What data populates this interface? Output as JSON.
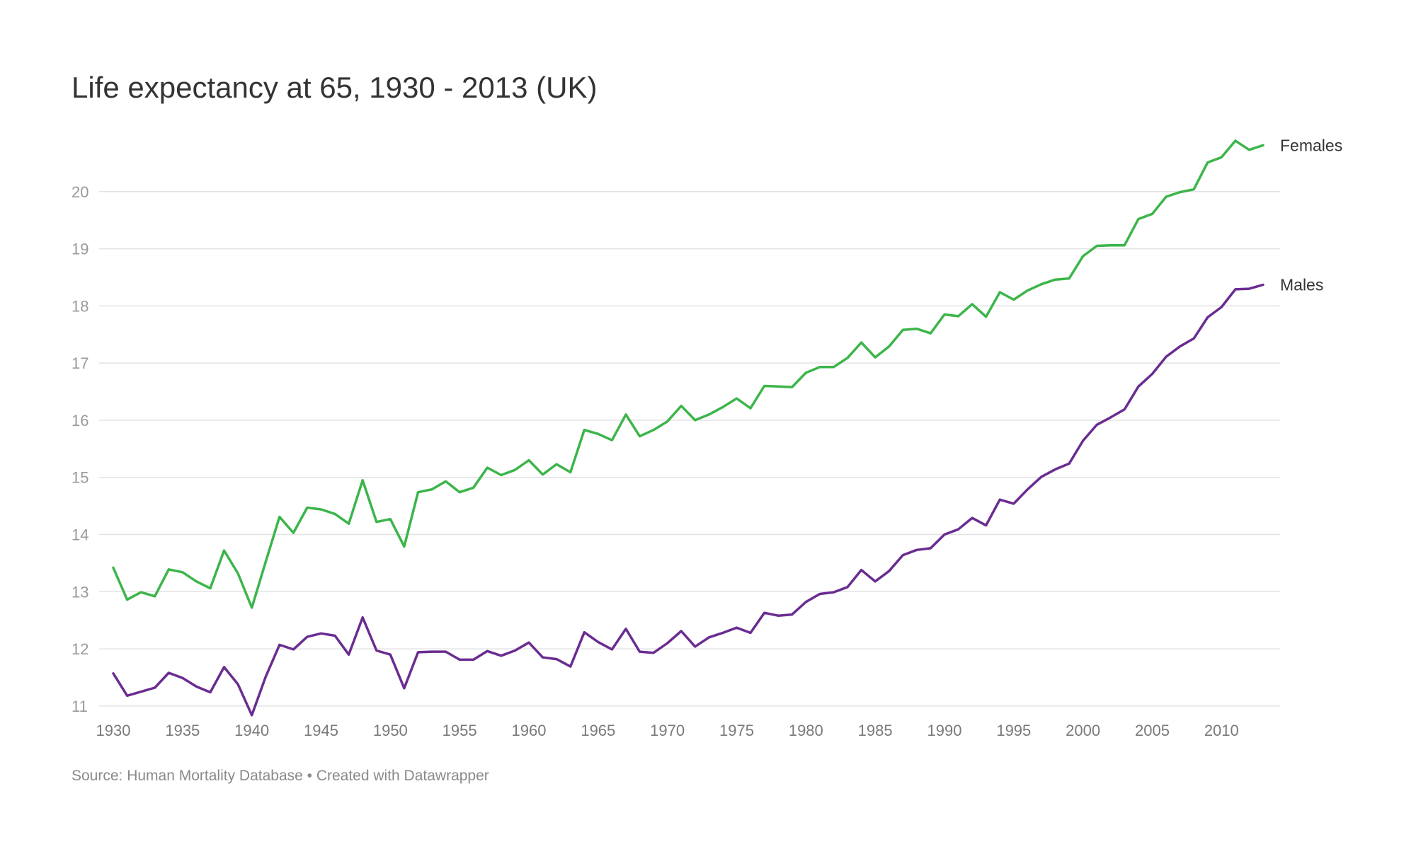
{
  "title": "Life expectancy at 65, 1930 - 2013 (UK)",
  "source": "Source: Human Mortality Database • Created with Datawrapper",
  "chart_data": {
    "type": "line",
    "title": "Life expectancy at 65, 1930 - 2013 (UK)",
    "xlabel": "",
    "ylabel": "",
    "xlim": [
      1930,
      2013
    ],
    "ylim": [
      10.85,
      21.0
    ],
    "yticks": [
      11,
      12,
      13,
      14,
      15,
      16,
      17,
      18,
      19,
      20
    ],
    "xticks": [
      1930,
      1935,
      1940,
      1945,
      1950,
      1955,
      1960,
      1965,
      1970,
      1975,
      1980,
      1985,
      1990,
      1995,
      2000,
      2005,
      2010
    ],
    "grid": true,
    "legend": "direct labels at line ends",
    "x_start": 1930,
    "series": [
      {
        "name": "Females",
        "color": "#3cb54a",
        "values": [
          13.42,
          12.86,
          12.99,
          12.92,
          13.39,
          13.34,
          13.18,
          13.06,
          13.72,
          13.32,
          12.72,
          13.52,
          14.31,
          14.03,
          14.47,
          14.44,
          14.36,
          14.19,
          14.95,
          14.22,
          14.27,
          13.79,
          14.74,
          14.79,
          14.93,
          14.74,
          14.82,
          15.17,
          15.04,
          15.13,
          15.3,
          15.05,
          15.23,
          15.09,
          15.83,
          15.76,
          15.65,
          16.1,
          15.72,
          15.83,
          15.98,
          16.25,
          16.0,
          16.1,
          16.23,
          16.38,
          16.21,
          16.6,
          16.59,
          16.58,
          16.83,
          16.93,
          16.93,
          17.09,
          17.36,
          17.1,
          17.29,
          17.58,
          17.6,
          17.52,
          17.85,
          17.82,
          18.03,
          17.81,
          18.24,
          18.11,
          18.27,
          18.38,
          18.46,
          18.48,
          18.87,
          19.05,
          19.06,
          19.06,
          19.52,
          19.61,
          19.91,
          19.99,
          20.04,
          20.51,
          20.6,
          20.89,
          20.73,
          20.81
        ]
      },
      {
        "name": "Males",
        "color": "#6a2c91",
        "values": [
          11.57,
          11.18,
          11.25,
          11.32,
          11.58,
          11.49,
          11.34,
          11.24,
          11.68,
          11.38,
          10.84,
          11.51,
          12.07,
          11.99,
          12.21,
          12.27,
          12.23,
          11.9,
          12.55,
          11.97,
          11.9,
          11.31,
          11.94,
          11.95,
          11.95,
          11.81,
          11.81,
          11.96,
          11.88,
          11.97,
          12.11,
          11.85,
          11.82,
          11.69,
          12.29,
          12.12,
          11.99,
          12.35,
          11.95,
          11.93,
          12.1,
          12.31,
          12.04,
          12.2,
          12.28,
          12.37,
          12.28,
          12.63,
          12.58,
          12.6,
          12.82,
          12.96,
          12.99,
          13.08,
          13.38,
          13.18,
          13.36,
          13.64,
          13.73,
          13.76,
          14.0,
          14.09,
          14.29,
          14.16,
          14.61,
          14.54,
          14.79,
          15.01,
          15.14,
          15.24,
          15.64,
          15.92,
          16.05,
          16.19,
          16.59,
          16.81,
          17.11,
          17.29,
          17.43,
          17.8,
          17.98,
          18.29,
          18.3,
          18.37
        ]
      }
    ]
  }
}
